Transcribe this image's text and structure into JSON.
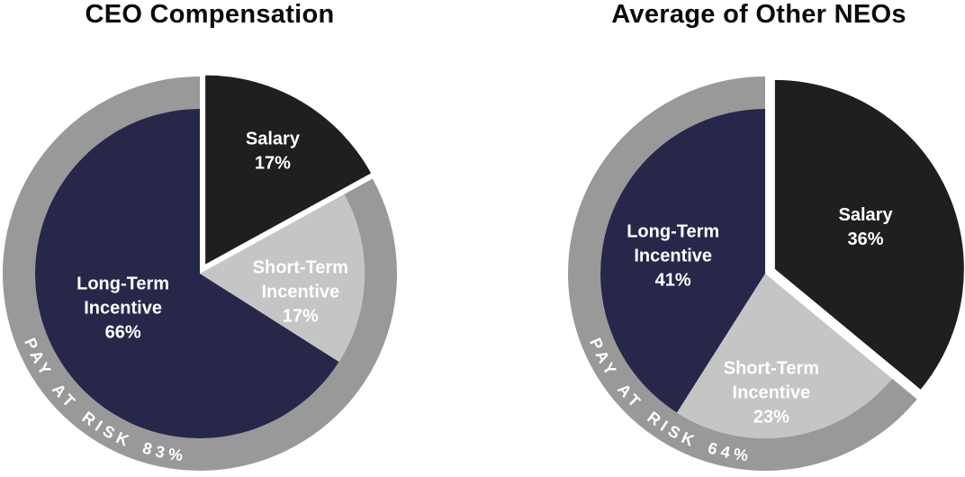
{
  "figure": {
    "background_color": "#ffffff"
  },
  "palette": {
    "salary_black": "#1f1f1f",
    "long_term_navy": "#27274a",
    "short_term_gray": "#c5c5c5",
    "ring_gray": "#999999",
    "slice_label_white": "#ffffff",
    "title_black": "#0a0a0a"
  },
  "chart_data": [
    {
      "type": "pie",
      "title": "CEO Compensation",
      "unit": "percent",
      "start_angle_deg": 0,
      "direction": "clockwise",
      "slices": [
        {
          "name": "Salary",
          "value": 17,
          "label_lines": [
            "Salary",
            "17%"
          ],
          "color": "#1f1f1f",
          "exploded": true
        },
        {
          "name": "Short-Term Incentive",
          "value": 17,
          "label_lines": [
            "Short-Term",
            "Incentive",
            "17%"
          ],
          "color": "#c5c5c5",
          "exploded": false
        },
        {
          "name": "Long-Term Incentive",
          "value": 66,
          "label_lines": [
            "Long-Term",
            "Incentive",
            "66%"
          ],
          "color": "#27274a",
          "exploded": false
        }
      ],
      "ring": {
        "label": "PAY AT RISK 83%",
        "value": 83,
        "color": "#999999",
        "covers": [
          "Short-Term Incentive",
          "Long-Term Incentive"
        ]
      }
    },
    {
      "type": "pie",
      "title": "Average of Other NEOs",
      "unit": "percent",
      "start_angle_deg": 0,
      "direction": "clockwise",
      "slices": [
        {
          "name": "Salary",
          "value": 36,
          "label_lines": [
            "Salary",
            "36%"
          ],
          "color": "#1f1f1f",
          "exploded": true
        },
        {
          "name": "Short-Term Incentive",
          "value": 23,
          "label_lines": [
            "Short-Term",
            "Incentive",
            "23%"
          ],
          "color": "#c5c5c5",
          "exploded": false
        },
        {
          "name": "Long-Term Incentive",
          "value": 41,
          "label_lines": [
            "Long-Term",
            "Incentive",
            "41%"
          ],
          "color": "#27274a",
          "exploded": false
        }
      ],
      "ring": {
        "label": "PAY AT RISK 64%",
        "value": 64,
        "color": "#999999",
        "covers": [
          "Short-Term Incentive",
          "Long-Term Incentive"
        ]
      }
    }
  ]
}
